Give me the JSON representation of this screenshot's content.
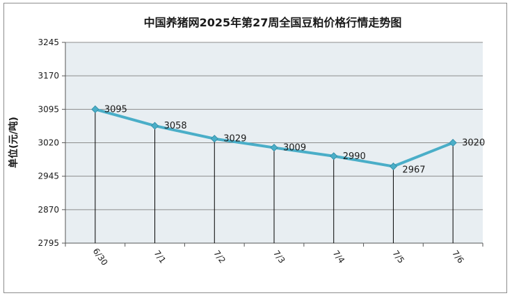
{
  "chart_data": {
    "type": "line",
    "title": "中国养猪网2025年第27周全国豆粕价格行情走势图",
    "xlabel": "",
    "ylabel": "单位(元/吨)",
    "categories": [
      "6/30",
      "7/1",
      "7/2",
      "7/3",
      "7/4",
      "7/5",
      "7/6"
    ],
    "series": [
      {
        "values": [
          3095,
          3058,
          3029,
          3009,
          2990,
          2967,
          3020
        ]
      }
    ],
    "data_labels": [
      "3095",
      "3058",
      "3029",
      "3009",
      "2990",
      "2967",
      "3020"
    ],
    "ylim": [
      2795,
      3245
    ],
    "yticks": [
      2795,
      2870,
      2945,
      3020,
      3095,
      3170,
      3245
    ],
    "ytick_labels": [
      "2795",
      "2870",
      "2945",
      "3020",
      "3095",
      "3170",
      "3245"
    ],
    "grid": true,
    "drop_lines": true,
    "colors": {
      "line": "#4aaec8",
      "marker": "#4aaec8",
      "plot_background": "#e8eef2",
      "gridline": "#8c8c8c",
      "drop_line": "#000000"
    }
  }
}
